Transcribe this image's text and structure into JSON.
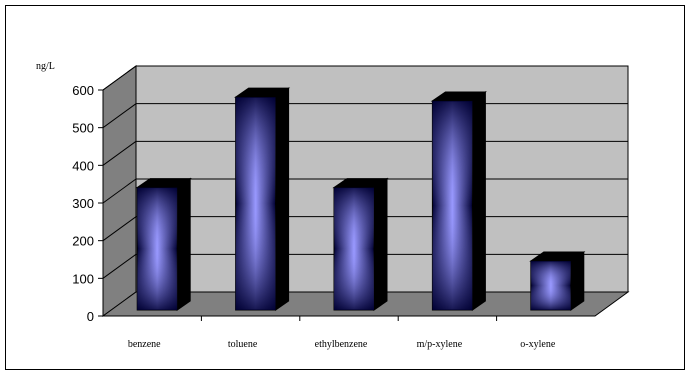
{
  "chart_data": {
    "type": "bar",
    "title": "",
    "xlabel": "",
    "ylabel": "ng/L",
    "categories": [
      "benzene",
      "toluene",
      "ethylbenzene",
      "m/p-xylene",
      "o-xylene"
    ],
    "values": [
      325,
      565,
      325,
      555,
      130
    ],
    "ylim": [
      0,
      600
    ],
    "yticks": [
      "0",
      "100",
      "200",
      "300",
      "400",
      "500",
      "600"
    ],
    "grid": true,
    "legend": "none",
    "three_d": true,
    "colors": {
      "wall": "#c0c0c0",
      "floor": "#808080",
      "side_wall": "#808080",
      "bar_center": "#9999ff",
      "bar_edge": "#000033",
      "bar_side": "#000000"
    }
  }
}
